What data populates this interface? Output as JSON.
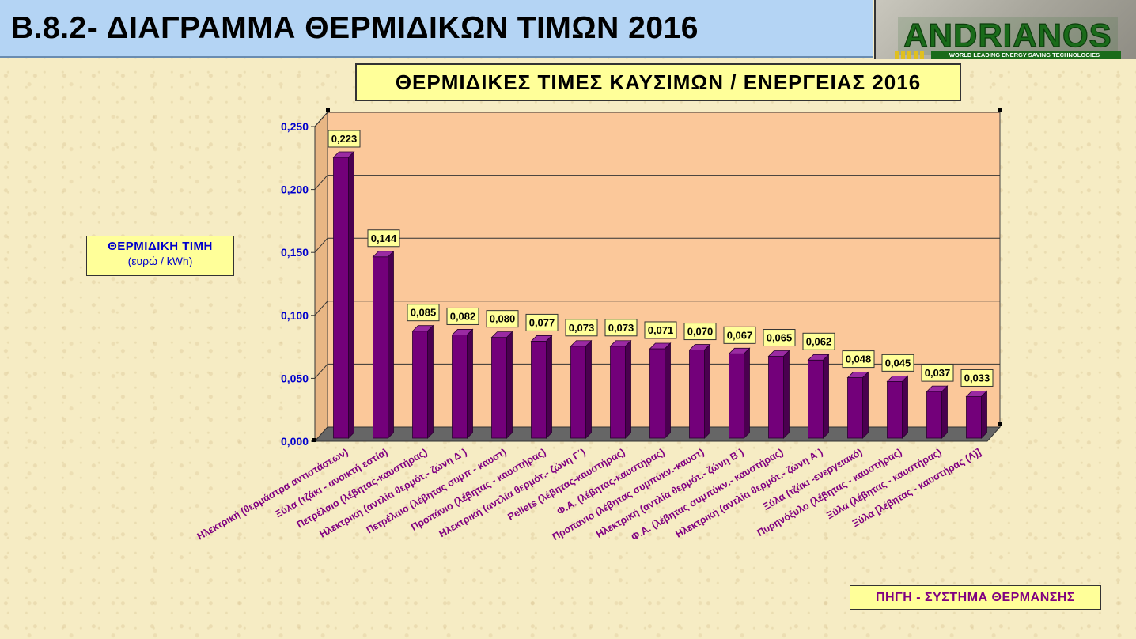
{
  "header": {
    "title": "B.8.2- ΔΙΑΓΡΑΜΜΑ  ΘΕΡΜΙΔΙΚΩΝ ΤΙΜΩΝ  2016"
  },
  "logo": {
    "name": "ANDRIANOS",
    "tagline": "WORLD LEADING ENERGY SAVING TECHNOLOGIES"
  },
  "colors": {
    "bar": "#73007a",
    "plot_bg": "#fbc89a",
    "label_bg": "#ffff99",
    "axis_text": "#0000cc",
    "category_text": "#800080"
  },
  "chart_data": {
    "type": "bar",
    "title": "ΘΕΡΜΙΔΙΚΕΣ  ΤΙΜΕΣ  ΚΑΥΣΙΜΩΝ / ΕΝΕΡΓΕΙΑΣ  2016",
    "ylabel": "ΘΕΡΜΙΔΙΚΗ  ΤΙΜΗ",
    "ylabel_unit": "(ευρώ / kWh)",
    "xlabel": "ΠΗΓΗ - ΣΥΣΤΗΜΑ  ΘΕΡΜΑΝΣΗΣ",
    "ylim": [
      0,
      0.25
    ],
    "yticks": [
      "0,000",
      "0,050",
      "0,100",
      "0,150",
      "0,200",
      "0,250"
    ],
    "grid": true,
    "categories": [
      "Ηλεκτρική  (θερμάστρα αντιστάσεων)",
      "Ξύλα (τζάκι - ανοικτή εστία)",
      "Πετρέλαιο (λέβητας-καυστήρας)",
      "Ηλεκτρική (αντλία θερμότ.- ζώνη  Δ΄)",
      "Πετρέλαιο (λέβητας συμπ - καυστ)",
      "Προπάνιο (λέβητας - καυστήρας)",
      "Ηλεκτρική (αντλία θερμότ.- ζώνη  Γ΄)",
      "Pellets (λέβητας-καυστήρας)",
      "Φ.Α. (λέβητας-καυστήρας)",
      "Προπάνιο (λέβητας συμπύκν.-καυστ)",
      "Ηλεκτρική (αντλία θερμότ.- ζώνη  Β΄)",
      "Φ.Α. (λέβητας συμπύκν.- καυστήρας)",
      "Ηλεκτρική (αντλία θερμότ.- ζώνη  Α΄)",
      "Ξύλα (τζάκι -ενεργειακό)",
      "Πυρηνόξυλο (λέβητας - καυστήρας)",
      "Ξύλα (λέβητας - καυστήρας)",
      "Ξύλα [λέβητας - καυστήρας (Λ)]"
    ],
    "values": [
      0.223,
      0.144,
      0.085,
      0.082,
      0.08,
      0.077,
      0.073,
      0.073,
      0.071,
      0.07,
      0.067,
      0.065,
      0.062,
      0.048,
      0.045,
      0.037,
      0.033
    ],
    "value_labels": [
      "0,223",
      "0,144",
      "0,085",
      "0,082",
      "0,080",
      "0,077",
      "0,073",
      "0,073",
      "0,071",
      "0,070",
      "0,067",
      "0,065",
      "0,062",
      "0,048",
      "0,045",
      "0,037",
      "0,033"
    ]
  }
}
